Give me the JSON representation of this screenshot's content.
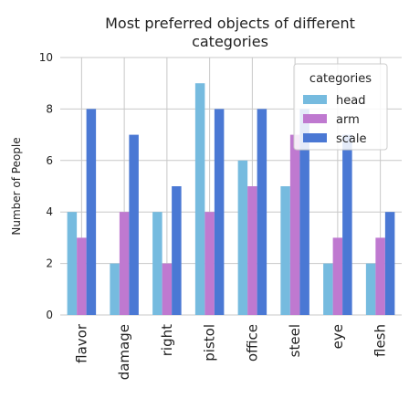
{
  "chart_data": {
    "type": "bar",
    "title": "Most preferred objects of different categories",
    "title_lines": [
      "Most preferred objects of different",
      "categories"
    ],
    "xlabel": "",
    "ylabel": "Number of People",
    "ylim": [
      0,
      10
    ],
    "yticks": [
      "0",
      "2",
      "4",
      "6",
      "8",
      "10"
    ],
    "grid": true,
    "legend_position": "top-right",
    "legend_title": "categories",
    "categories": [
      "flavor",
      "damage",
      "right",
      "pistol",
      "office",
      "steel",
      "eye",
      "flesh"
    ],
    "series": [
      {
        "name": "head",
        "color": "#76bbdf",
        "values": [
          4,
          2,
          4,
          9,
          6,
          5,
          2,
          2
        ]
      },
      {
        "name": "arm",
        "color": "#bf79d0",
        "values": [
          3,
          4,
          2,
          4,
          5,
          7,
          3,
          3
        ]
      },
      {
        "name": "scale",
        "color": "#4a78d4",
        "values": [
          8,
          7,
          5,
          8,
          8,
          8,
          7,
          4
        ]
      }
    ]
  }
}
